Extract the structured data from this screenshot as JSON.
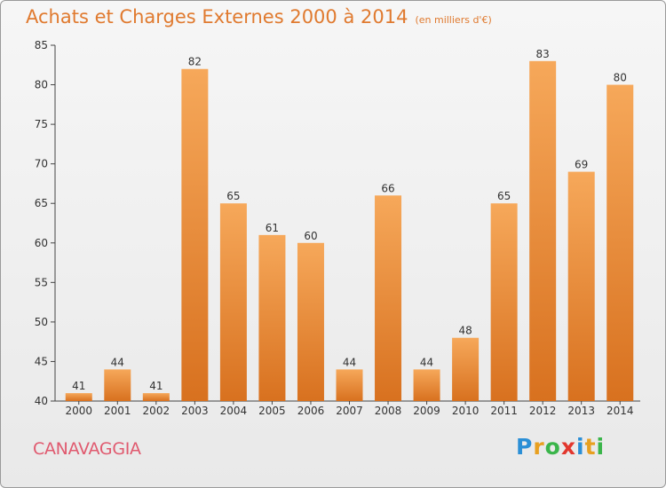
{
  "title": "Achats et Charges Externes 2000 à 2014",
  "unit": "(en milliers d'€)",
  "town": "CANAVAGGIA",
  "logo": {
    "text": "Proxiti",
    "letters": [
      "P",
      "r",
      "o",
      "x",
      "i",
      "t",
      "i"
    ],
    "colors": [
      "#2b8fd6",
      "#e8a020",
      "#3ab54a",
      "#e2372e",
      "#2b8fd6",
      "#e8a020",
      "#3ab54a"
    ]
  },
  "colors": {
    "bar_light": "#f6a85a",
    "bar_dark": "#d8711f",
    "title": "#e07a2f",
    "town": "#e05a6f"
  },
  "chart_data": {
    "type": "bar",
    "categories": [
      "2000",
      "2001",
      "2002",
      "2003",
      "2004",
      "2005",
      "2006",
      "2007",
      "2008",
      "2009",
      "2010",
      "2011",
      "2012",
      "2013",
      "2014"
    ],
    "values": [
      41,
      44,
      41,
      82,
      65,
      61,
      60,
      44,
      66,
      44,
      48,
      65,
      83,
      69,
      80
    ],
    "ylim": [
      40,
      85
    ],
    "yticks": [
      40,
      45,
      50,
      55,
      60,
      65,
      70,
      75,
      80,
      85
    ],
    "grid": false,
    "data_labels": true
  }
}
